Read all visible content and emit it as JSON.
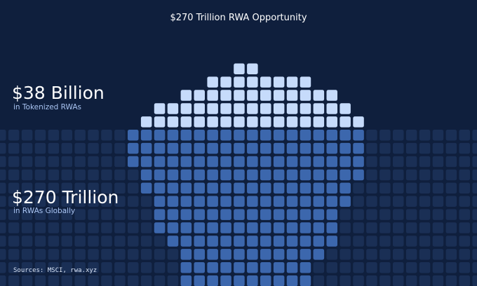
{
  "header": {
    "title": "$270 Trillion RWA Opportunity"
  },
  "stats": [
    {
      "value": "$38 Billion",
      "label": "in Tokenized RWAs"
    },
    {
      "value": "$270 Trillion",
      "label": "in RWAs Globally"
    }
  ],
  "source": "Sources: MSCI, rwa.xyz"
}
